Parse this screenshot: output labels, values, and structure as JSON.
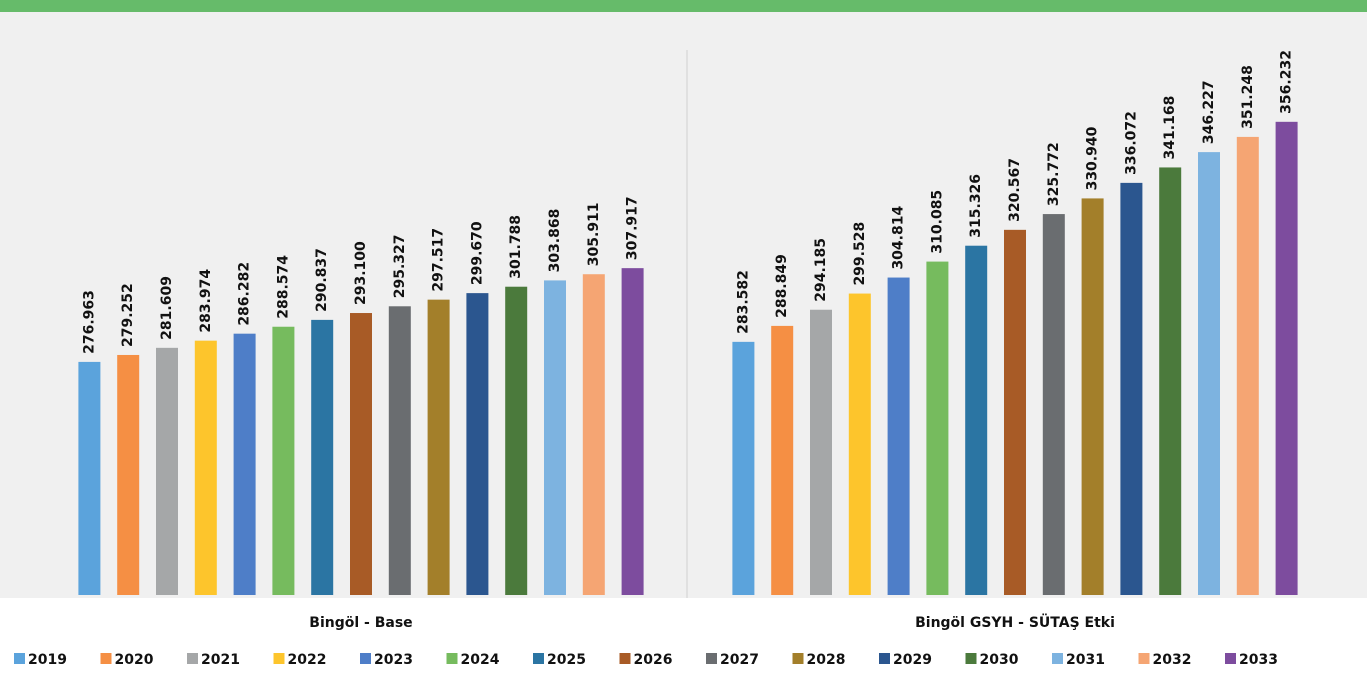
{
  "chart_data": {
    "type": "bar",
    "categories": [
      "Bingöl - Base",
      "Bingöl GSYH - SÜTAŞ Etki"
    ],
    "ylim": [
      200000,
      391500
    ],
    "legend": "bottom",
    "series": [
      {
        "name": "2019",
        "color": "#5ba3dc",
        "values": [
          276963,
          283582
        ],
        "value_labels": [
          "276.963",
          "283.582"
        ]
      },
      {
        "name": "2020",
        "color": "#f58f44",
        "values": [
          279252,
          288849
        ],
        "value_labels": [
          "279.252",
          "288.849"
        ]
      },
      {
        "name": "2021",
        "color": "#a5a7a8",
        "values": [
          281609,
          294185
        ],
        "value_labels": [
          "281.609",
          "294.185"
        ]
      },
      {
        "name": "2022",
        "color": "#fdc52c",
        "values": [
          283974,
          299528
        ],
        "value_labels": [
          "283.974",
          "299.528"
        ]
      },
      {
        "name": "2023",
        "color": "#4e7ec8",
        "values": [
          286282,
          304814
        ],
        "value_labels": [
          "286.282",
          "304.814"
        ]
      },
      {
        "name": "2024",
        "color": "#76bb5e",
        "values": [
          288574,
          310085
        ],
        "value_labels": [
          "288.574",
          "310.085"
        ]
      },
      {
        "name": "2025",
        "color": "#2b75a3",
        "values": [
          290837,
          315326
        ],
        "value_labels": [
          "290.837",
          "315.326"
        ]
      },
      {
        "name": "2026",
        "color": "#a85b26",
        "values": [
          293100,
          320567
        ],
        "value_labels": [
          "293.100",
          "320.567"
        ]
      },
      {
        "name": "2027",
        "color": "#6a6d70",
        "values": [
          295327,
          325772
        ],
        "value_labels": [
          "295.327",
          "325.772"
        ]
      },
      {
        "name": "2028",
        "color": "#a37f2a",
        "values": [
          297517,
          330940
        ],
        "value_labels": [
          "297.517",
          "330.940"
        ]
      },
      {
        "name": "2029",
        "color": "#2b568f",
        "values": [
          299670,
          336072
        ],
        "value_labels": [
          "299.670",
          "336.072"
        ]
      },
      {
        "name": "2030",
        "color": "#4b7a3c",
        "values": [
          301788,
          341168
        ],
        "value_labels": [
          "301.788",
          "341.168"
        ]
      },
      {
        "name": "2031",
        "color": "#7db3e0",
        "values": [
          303868,
          346227
        ],
        "value_labels": [
          "303.868",
          "346.227"
        ]
      },
      {
        "name": "2032",
        "color": "#f5a573",
        "values": [
          305911,
          351248
        ],
        "value_labels": [
          "305.911",
          "351.248"
        ]
      },
      {
        "name": "2033",
        "color": "#7d4c9e",
        "values": [
          307917,
          356232
        ],
        "value_labels": [
          "307.917",
          "356.232"
        ]
      }
    ]
  }
}
